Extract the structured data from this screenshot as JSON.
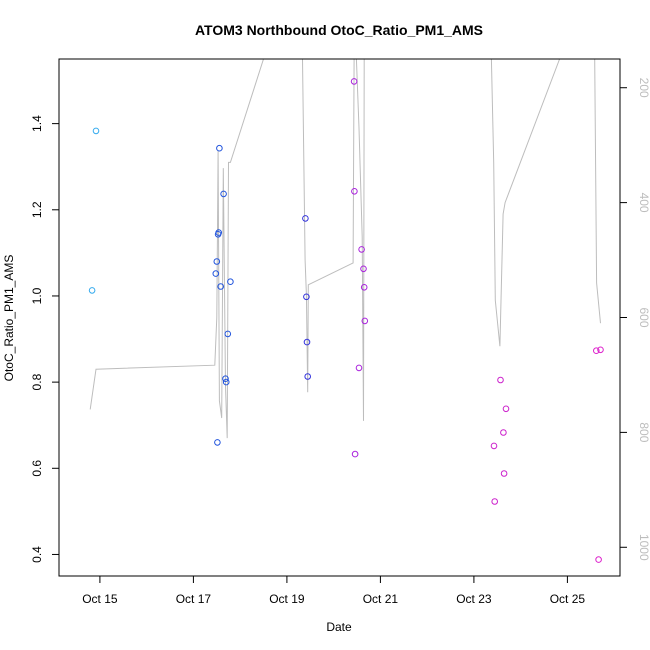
{
  "chart_data": {
    "type": "scatter",
    "title": "ATOM3 Northbound OtoC_Ratio_PM1_AMS",
    "xlabel": "Date",
    "ylabel": "OtoC_Ratio_PM1_AMS",
    "x_ticks": [
      "Oct 15",
      "Oct 17",
      "Oct 19",
      "Oct 21",
      "Oct 23",
      "Oct 25"
    ],
    "y_ticks": [
      "0.4",
      "0.6",
      "0.8",
      "1.0",
      "1.2",
      "1.4"
    ],
    "y2_ticks": [
      "200",
      "400",
      "600",
      "800",
      "1000"
    ],
    "xlim": [
      "2013-10-14T03:00",
      "2013-10-26T03:00"
    ],
    "ylim": [
      0.35,
      1.55
    ],
    "y2lim": [
      150,
      1050
    ],
    "y2_reversed": true,
    "grid": false,
    "legend": "none",
    "colors": {
      "line": "#bdbdbd",
      "axis": "#000000",
      "axis_right": "#000000"
    },
    "points": [
      {
        "x": "2013-10-14T20:00",
        "y": 1.013,
        "color": "#33aaee"
      },
      {
        "x": "2013-10-14T22:00",
        "y": 1.383,
        "color": "#33aaee"
      },
      {
        "x": "2013-10-17T11:30",
        "y": 1.052,
        "color": "#2255dd"
      },
      {
        "x": "2013-10-17T12:00",
        "y": 1.08,
        "color": "#2255dd"
      },
      {
        "x": "2013-10-17T12:20",
        "y": 0.66,
        "color": "#2255dd"
      },
      {
        "x": "2013-10-17T12:40",
        "y": 1.143,
        "color": "#2255dd"
      },
      {
        "x": "2013-10-17T13:00",
        "y": 1.147,
        "color": "#2255dd"
      },
      {
        "x": "2013-10-17T13:20",
        "y": 1.343,
        "color": "#2255dd"
      },
      {
        "x": "2013-10-17T14:00",
        "y": 1.022,
        "color": "#2255dd"
      },
      {
        "x": "2013-10-17T15:30",
        "y": 1.237,
        "color": "#2255dd"
      },
      {
        "x": "2013-10-17T16:30",
        "y": 0.808,
        "color": "#2255dd"
      },
      {
        "x": "2013-10-17T16:50",
        "y": 0.8,
        "color": "#2255dd"
      },
      {
        "x": "2013-10-17T17:40",
        "y": 0.912,
        "color": "#2255dd"
      },
      {
        "x": "2013-10-17T19:00",
        "y": 1.033,
        "color": "#2255dd"
      },
      {
        "x": "2013-10-19T09:30",
        "y": 1.18,
        "color": "#3333dd"
      },
      {
        "x": "2013-10-19T10:00",
        "y": 0.998,
        "color": "#3333dd"
      },
      {
        "x": "2013-10-19T10:20",
        "y": 0.893,
        "color": "#3333dd"
      },
      {
        "x": "2013-10-19T10:40",
        "y": 0.813,
        "color": "#3333dd"
      },
      {
        "x": "2013-10-20T10:30",
        "y": 1.498,
        "color": "#aa22dd"
      },
      {
        "x": "2013-10-20T10:40",
        "y": 1.243,
        "color": "#aa22dd"
      },
      {
        "x": "2013-10-20T11:00",
        "y": 0.633,
        "color": "#aa22dd"
      },
      {
        "x": "2013-10-20T13:00",
        "y": 0.833,
        "color": "#aa22dd"
      },
      {
        "x": "2013-10-20T14:20",
        "y": 1.108,
        "color": "#aa22dd"
      },
      {
        "x": "2013-10-20T15:20",
        "y": 1.063,
        "color": "#aa22dd"
      },
      {
        "x": "2013-10-20T15:40",
        "y": 1.02,
        "color": "#aa22dd"
      },
      {
        "x": "2013-10-20T16:00",
        "y": 0.942,
        "color": "#aa22dd"
      },
      {
        "x": "2013-10-23T10:20",
        "y": 0.652,
        "color": "#cc22cc"
      },
      {
        "x": "2013-10-23T10:40",
        "y": 0.523,
        "color": "#cc22cc"
      },
      {
        "x": "2013-10-23T13:40",
        "y": 0.805,
        "color": "#cc22cc"
      },
      {
        "x": "2013-10-23T15:10",
        "y": 0.683,
        "color": "#cc22cc"
      },
      {
        "x": "2013-10-23T15:30",
        "y": 0.588,
        "color": "#cc22cc"
      },
      {
        "x": "2013-10-23T16:30",
        "y": 0.738,
        "color": "#cc22cc"
      },
      {
        "x": "2013-10-25T14:50",
        "y": 0.873,
        "color": "#dd22cc"
      },
      {
        "x": "2013-10-25T16:00",
        "y": 0.388,
        "color": "#dd22cc"
      },
      {
        "x": "2013-10-25T17:00",
        "y": 0.875,
        "color": "#dd22cc"
      }
    ],
    "line_series": [
      [
        {
          "x": "2013-10-14T19:00",
          "y2": 760
        },
        {
          "x": "2013-10-14T22:00",
          "y2": 690
        },
        {
          "x": "2013-10-17T11:00",
          "y2": 683
        },
        {
          "x": "2013-10-17T12:00",
          "y2": 600
        },
        {
          "x": "2013-10-17T12:40",
          "y2": 310
        },
        {
          "x": "2013-10-17T13:20",
          "y2": 745
        },
        {
          "x": "2013-10-17T14:30",
          "y2": 775
        },
        {
          "x": "2013-10-17T15:20",
          "y2": 340
        },
        {
          "x": "2013-10-17T16:30",
          "y2": 720
        },
        {
          "x": "2013-10-17T17:20",
          "y2": 810
        },
        {
          "x": "2013-10-17T18:00",
          "y2": 330
        },
        {
          "x": "2013-10-17T19:00",
          "y2": 330
        },
        {
          "x": "2013-10-18T12:00",
          "y2": 150
        }
      ],
      [
        {
          "x": "2013-10-19T08:00",
          "y2": 150
        },
        {
          "x": "2013-10-19T09:20",
          "y2": 500
        },
        {
          "x": "2013-10-19T10:00",
          "y2": 560
        },
        {
          "x": "2013-10-19T10:40",
          "y2": 730
        },
        {
          "x": "2013-10-19T11:00",
          "y2": 543
        },
        {
          "x": "2013-10-20T10:00",
          "y2": 505
        },
        {
          "x": "2013-10-20T10:30",
          "y2": 150
        }
      ],
      [
        {
          "x": "2013-10-20T11:40",
          "y2": 150
        },
        {
          "x": "2013-10-20T13:00",
          "y2": 270
        },
        {
          "x": "2013-10-20T14:40",
          "y2": 460
        },
        {
          "x": "2013-10-20T15:20",
          "y2": 780
        },
        {
          "x": "2013-10-20T15:40",
          "y2": 150
        }
      ],
      [
        {
          "x": "2013-10-23T09:00",
          "y2": 150
        },
        {
          "x": "2013-10-23T10:10",
          "y2": 330
        },
        {
          "x": "2013-10-23T11:00",
          "y2": 570
        },
        {
          "x": "2013-10-23T13:20",
          "y2": 650
        },
        {
          "x": "2013-10-23T15:00",
          "y2": 420
        },
        {
          "x": "2013-10-23T16:00",
          "y2": 400
        },
        {
          "x": "2013-10-24T20:00",
          "y2": 150
        }
      ],
      [
        {
          "x": "2013-10-25T14:00",
          "y2": 150
        },
        {
          "x": "2013-10-25T15:00",
          "y2": 540
        },
        {
          "x": "2013-10-25T17:00",
          "y2": 610
        }
      ]
    ]
  }
}
